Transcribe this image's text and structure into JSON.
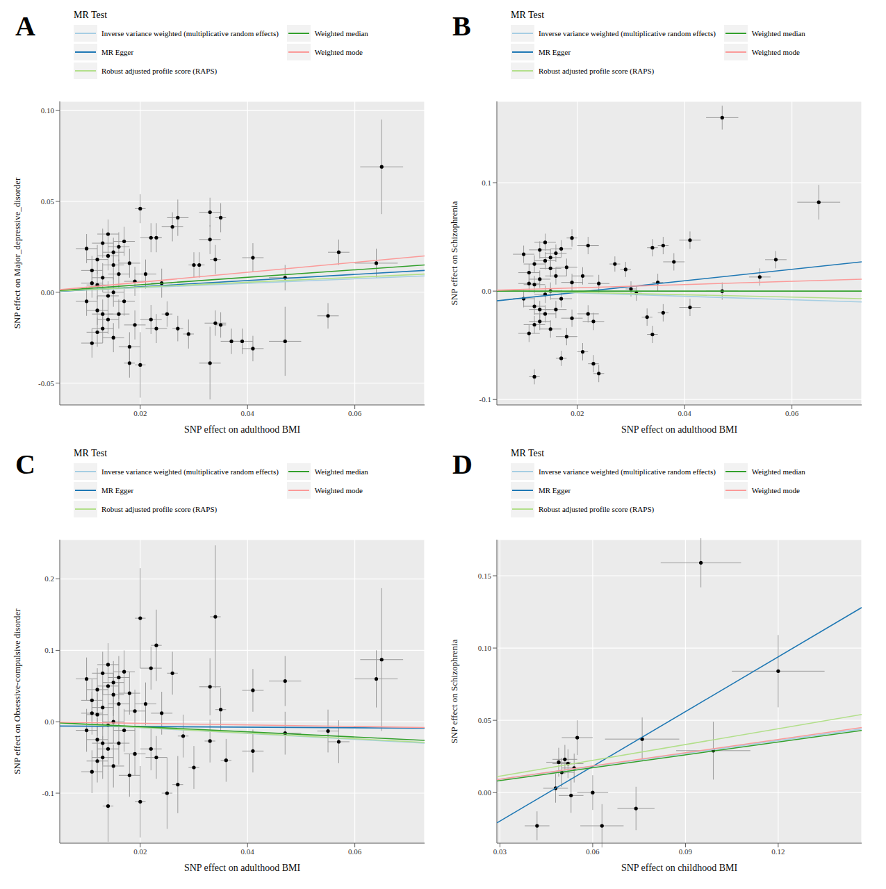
{
  "chart_data": [
    {
      "type": "scatter",
      "panel_label": "A",
      "legend_title": "MR Test",
      "x_label": "SNP effect on adulthood BMI",
      "y_label": "SNP effect on Major_depressive_disorder",
      "xlim": [
        0.005,
        0.073
      ],
      "ylim": [
        -0.062,
        0.105
      ],
      "xticks": [
        0.02,
        0.04,
        0.06
      ],
      "yticks": [
        -0.05,
        {
          "value": 0,
          "label": "0.00"
        },
        0.05,
        {
          "value": 0.1,
          "label": "0.10"
        }
      ],
      "grid": true,
      "color": "#000000",
      "marker": "circle",
      "x": [
        0.01,
        0.011,
        0.011,
        0.012,
        0.012,
        0.012,
        0.013,
        0.013,
        0.013,
        0.014,
        0.014,
        0.014,
        0.015,
        0.015,
        0.015,
        0.016,
        0.016,
        0.017,
        0.017,
        0.018,
        0.018,
        0.019,
        0.019,
        0.01,
        0.011,
        0.012,
        0.013,
        0.014,
        0.015,
        0.016,
        0.021,
        0.022,
        0.022,
        0.024,
        0.023,
        0.065,
        0.057,
        0.064,
        0.055,
        0.047,
        0.047,
        0.041,
        0.041,
        0.039,
        0.037,
        0.035,
        0.033,
        0.033,
        0.033,
        0.034,
        0.034,
        0.035,
        0.027,
        0.026,
        0.02,
        0.02,
        0.018,
        0.029,
        0.027,
        0.023,
        0.03,
        0.031,
        0.025
      ],
      "values": [
        0.024,
        -0.028,
        0.012,
        0.018,
        -0.01,
        0.004,
        -0.02,
        0.027,
        0.008,
        -0.015,
        0.032,
        -0.002,
        0.015,
        -0.025,
        0.022,
        0.01,
        -0.012,
        0.028,
        -0.005,
        0.016,
        -0.03,
        0.006,
        -0.018,
        -0.005,
        0.005,
        -0.022,
        -0.012,
        0.02,
        0.0,
        0.025,
        0.01,
        -0.015,
        0.03,
        0.005,
        -0.02,
        0.069,
        0.022,
        0.016,
        -0.013,
        0.008,
        -0.027,
        0.019,
        -0.031,
        -0.027,
        -0.027,
        0.041,
        0.044,
        0.029,
        -0.039,
        0.018,
        -0.017,
        -0.018,
        0.041,
        0.036,
        0.046,
        -0.04,
        -0.039,
        -0.023,
        -0.02,
        0.03,
        0.015,
        0.015,
        -0.012
      ],
      "x_err": [
        0.002,
        0.002,
        0.002,
        0.002,
        0.002,
        0.002,
        0.002,
        0.002,
        0.002,
        0.002,
        0.002,
        0.002,
        0.002,
        0.002,
        0.002,
        0.002,
        0.002,
        0.002,
        0.002,
        0.002,
        0.002,
        0.002,
        0.002,
        0.002,
        0.002,
        0.002,
        0.002,
        0.002,
        0.002,
        0.002,
        0.002,
        0.002,
        0.002,
        0.002,
        0.002,
        0.004,
        0.002,
        0.004,
        0.002,
        0.003,
        0.003,
        0.002,
        0.002,
        0.002,
        0.002,
        0.001,
        0.002,
        0.002,
        0.002,
        0.001,
        0.002,
        0.001,
        0.002,
        0.002,
        0.001,
        0.001,
        0.001,
        0.001,
        0.001,
        0.001,
        0.001,
        0.001,
        0.001
      ],
      "y_err": [
        0.008,
        0.008,
        0.008,
        0.008,
        0.008,
        0.008,
        0.008,
        0.008,
        0.008,
        0.008,
        0.008,
        0.008,
        0.008,
        0.008,
        0.008,
        0.008,
        0.008,
        0.008,
        0.008,
        0.008,
        0.008,
        0.008,
        0.008,
        0.008,
        0.008,
        0.008,
        0.008,
        0.008,
        0.008,
        0.008,
        0.008,
        0.008,
        0.008,
        0.008,
        0.008,
        0.026,
        0.007,
        0.008,
        0.007,
        0.007,
        0.019,
        0.008,
        0.007,
        0.007,
        0.007,
        0.008,
        0.008,
        0.008,
        0.02,
        0.008,
        0.007,
        0.007,
        0.01,
        0.008,
        0.008,
        0.018,
        0.008,
        0.008,
        0.007,
        0.008,
        0.007,
        0.007,
        0.007
      ],
      "series": [
        {
          "name": "Inverse variance weighted (multiplicative random effects)",
          "color": "#a6cee3",
          "type": "line",
          "x": [
            0.005,
            0.073
          ],
          "values": [
            0.0006,
            0.009
          ]
        },
        {
          "name": "MR Egger",
          "color": "#1f78b4",
          "type": "line",
          "x": [
            0.005,
            0.073
          ],
          "values": [
            0.0005,
            0.012
          ]
        },
        {
          "name": "Robust adjusted profile score (RAPS)",
          "color": "#b2df8a",
          "type": "line",
          "x": [
            0.005,
            0.073
          ],
          "values": [
            0.0007,
            0.01
          ]
        },
        {
          "name": "Weighted median",
          "color": "#33a02c",
          "type": "line",
          "x": [
            0.005,
            0.073
          ],
          "values": [
            0.001,
            0.015
          ]
        },
        {
          "name": "Weighted mode",
          "color": "#fb9a99",
          "type": "line",
          "x": [
            0.005,
            0.073
          ],
          "values": [
            0.0014,
            0.02
          ]
        }
      ]
    },
    {
      "type": "scatter",
      "panel_label": "B",
      "legend_title": "MR Test",
      "x_label": "SNP effect on adulthood BMI",
      "y_label": "SNP effect on Schizophrenia",
      "xlim": [
        0.005,
        0.073
      ],
      "ylim": [
        -0.105,
        0.175
      ],
      "xticks": [
        0.02,
        0.04,
        0.06
      ],
      "yticks": [
        -0.1,
        {
          "value": 0,
          "label": "0.0"
        },
        0.1
      ],
      "grid": true,
      "color": "#000000",
      "marker": "circle",
      "x": [
        0.01,
        0.011,
        0.011,
        0.012,
        0.012,
        0.012,
        0.013,
        0.013,
        0.013,
        0.014,
        0.014,
        0.014,
        0.015,
        0.015,
        0.015,
        0.016,
        0.016,
        0.017,
        0.017,
        0.018,
        0.018,
        0.019,
        0.019,
        0.01,
        0.011,
        0.012,
        0.013,
        0.014,
        0.015,
        0.016,
        0.021,
        0.022,
        0.022,
        0.024,
        0.023,
        0.047,
        0.065,
        0.057,
        0.054,
        0.047,
        0.041,
        0.041,
        0.038,
        0.036,
        0.034,
        0.035,
        0.033,
        0.034,
        0.036,
        0.024,
        0.023,
        0.012,
        0.019,
        0.017,
        0.021,
        0.027,
        0.03,
        0.031,
        0.029
      ],
      "values": [
        0.034,
        -0.039,
        0.017,
        0.025,
        -0.014,
        0.006,
        -0.028,
        0.038,
        0.011,
        -0.021,
        0.045,
        -0.003,
        0.021,
        -0.035,
        0.031,
        0.014,
        -0.017,
        0.039,
        -0.007,
        0.022,
        -0.042,
        0.008,
        -0.025,
        -0.007,
        0.007,
        -0.031,
        -0.017,
        0.028,
        0.0,
        0.035,
        0.014,
        -0.021,
        0.042,
        0.007,
        -0.028,
        0.16,
        0.082,
        0.029,
        0.013,
        0.0,
        0.047,
        -0.015,
        0.027,
        0.042,
        0.04,
        0.008,
        -0.024,
        -0.04,
        -0.02,
        -0.076,
        -0.067,
        -0.079,
        0.049,
        -0.062,
        -0.056,
        0.025,
        0.002,
        -0.002,
        0.02
      ],
      "x_err": [
        0.002,
        0.002,
        0.002,
        0.002,
        0.002,
        0.002,
        0.002,
        0.002,
        0.002,
        0.002,
        0.002,
        0.002,
        0.002,
        0.002,
        0.002,
        0.002,
        0.002,
        0.002,
        0.002,
        0.002,
        0.002,
        0.002,
        0.002,
        0.002,
        0.002,
        0.002,
        0.002,
        0.002,
        0.002,
        0.002,
        0.002,
        0.002,
        0.002,
        0.002,
        0.002,
        0.003,
        0.004,
        0.002,
        0.002,
        0.003,
        0.002,
        0.002,
        0.002,
        0.001,
        0.001,
        0.001,
        0.001,
        0.001,
        0.001,
        0.001,
        0.001,
        0.001,
        0.001,
        0.001,
        0.001,
        0.001,
        0.001,
        0.001,
        0.001
      ],
      "y_err": [
        0.008,
        0.008,
        0.008,
        0.008,
        0.008,
        0.008,
        0.008,
        0.008,
        0.008,
        0.008,
        0.008,
        0.008,
        0.008,
        0.008,
        0.008,
        0.008,
        0.008,
        0.008,
        0.008,
        0.008,
        0.008,
        0.008,
        0.008,
        0.008,
        0.008,
        0.008,
        0.008,
        0.008,
        0.008,
        0.008,
        0.008,
        0.008,
        0.008,
        0.008,
        0.008,
        0.011,
        0.016,
        0.008,
        0.008,
        0.008,
        0.008,
        0.008,
        0.008,
        0.008,
        0.008,
        0.008,
        0.008,
        0.008,
        0.008,
        0.008,
        0.008,
        0.007,
        0.008,
        0.007,
        0.008,
        0.007,
        0.007,
        0.007,
        0.007
      ],
      "series": [
        {
          "name": "Inverse variance weighted (multiplicative random effects)",
          "color": "#a6cee3",
          "type": "line",
          "x": [
            0.005,
            0.073
          ],
          "values": [
            0.0007,
            -0.01
          ]
        },
        {
          "name": "MR Egger",
          "color": "#1f78b4",
          "type": "line",
          "x": [
            0.005,
            0.073
          ],
          "values": [
            -0.009,
            0.027
          ]
        },
        {
          "name": "Robust adjusted profile score (RAPS)",
          "color": "#b2df8a",
          "type": "line",
          "x": [
            0.005,
            0.073
          ],
          "values": [
            0.0005,
            -0.007
          ]
        },
        {
          "name": "Weighted median",
          "color": "#33a02c",
          "type": "line",
          "x": [
            0.005,
            0.073
          ],
          "values": [
            0,
            0
          ]
        },
        {
          "name": "Weighted mode",
          "color": "#fb9a99",
          "type": "line",
          "x": [
            0.005,
            0.073
          ],
          "values": [
            0.0008,
            0.011
          ]
        }
      ]
    },
    {
      "type": "scatter",
      "panel_label": "C",
      "legend_title": "MR Test",
      "x_label": "SNP effect on adulthood BMI",
      "y_label": "SNP effect on Obsessive-compulsive disorder",
      "xlim": [
        0.005,
        0.073
      ],
      "ylim": [
        -0.17,
        0.255
      ],
      "xticks": [
        0.02,
        0.04,
        0.06
      ],
      "yticks": [
        -0.1,
        {
          "value": 0,
          "label": "0.0"
        },
        0.1,
        0.2
      ],
      "grid": true,
      "color": "#000000",
      "marker": "circle",
      "x": [
        0.01,
        0.011,
        0.011,
        0.012,
        0.012,
        0.012,
        0.013,
        0.013,
        0.013,
        0.014,
        0.014,
        0.014,
        0.015,
        0.015,
        0.015,
        0.016,
        0.016,
        0.017,
        0.017,
        0.018,
        0.018,
        0.019,
        0.019,
        0.01,
        0.011,
        0.012,
        0.013,
        0.014,
        0.015,
        0.016,
        0.021,
        0.022,
        0.022,
        0.024,
        0.023,
        0.065,
        0.064,
        0.057,
        0.055,
        0.047,
        0.047,
        0.041,
        0.041,
        0.034,
        0.033,
        0.033,
        0.035,
        0.036,
        0.02,
        0.02,
        0.014,
        0.023,
        0.025,
        0.027,
        0.03,
        0.028,
        0.026
      ],
      "values": [
        0.06,
        -0.07,
        0.03,
        0.045,
        -0.025,
        0.01,
        -0.05,
        0.068,
        0.02,
        -0.038,
        0.08,
        -0.005,
        0.038,
        -0.062,
        0.055,
        0.025,
        -0.03,
        0.07,
        -0.012,
        0.04,
        -0.075,
        0.015,
        -0.045,
        -0.012,
        0.012,
        -0.055,
        -0.03,
        0.05,
        0.0,
        0.062,
        0.025,
        -0.038,
        0.075,
        0.012,
        -0.05,
        0.087,
        0.06,
        -0.028,
        -0.013,
        0.057,
        -0.016,
        0.044,
        -0.041,
        0.147,
        0.049,
        -0.027,
        0.017,
        -0.054,
        0.145,
        -0.112,
        -0.118,
        0.107,
        -0.1,
        -0.088,
        -0.064,
        -0.02,
        0.068
      ],
      "x_err": [
        0.002,
        0.002,
        0.002,
        0.002,
        0.002,
        0.002,
        0.002,
        0.002,
        0.002,
        0.002,
        0.002,
        0.002,
        0.002,
        0.002,
        0.002,
        0.002,
        0.002,
        0.002,
        0.002,
        0.002,
        0.002,
        0.002,
        0.002,
        0.002,
        0.002,
        0.002,
        0.002,
        0.002,
        0.002,
        0.002,
        0.002,
        0.002,
        0.002,
        0.002,
        0.002,
        0.004,
        0.004,
        0.002,
        0.002,
        0.003,
        0.003,
        0.002,
        0.002,
        0.001,
        0.002,
        0.001,
        0.001,
        0.001,
        0.001,
        0.001,
        0.001,
        0.001,
        0.001,
        0.001,
        0.001,
        0.001,
        0.001
      ],
      "y_err": [
        0.03,
        0.03,
        0.03,
        0.03,
        0.03,
        0.03,
        0.03,
        0.03,
        0.03,
        0.03,
        0.03,
        0.03,
        0.03,
        0.03,
        0.03,
        0.03,
        0.03,
        0.03,
        0.03,
        0.03,
        0.03,
        0.03,
        0.03,
        0.03,
        0.03,
        0.03,
        0.03,
        0.03,
        0.03,
        0.03,
        0.03,
        0.03,
        0.03,
        0.03,
        0.03,
        0.1,
        0.04,
        0.03,
        0.03,
        0.035,
        0.03,
        0.03,
        0.03,
        0.1,
        0.04,
        0.03,
        0.03,
        0.03,
        0.07,
        0.05,
        0.05,
        0.05,
        0.05,
        0.04,
        0.03,
        0.03,
        0.03
      ],
      "series": [
        {
          "name": "Inverse variance weighted (multiplicative random effects)",
          "color": "#a6cee3",
          "type": "line",
          "x": [
            0.005,
            0.073
          ],
          "values": [
            -0.002,
            -0.03
          ]
        },
        {
          "name": "MR Egger",
          "color": "#1f78b4",
          "type": "line",
          "x": [
            0.005,
            0.073
          ],
          "values": [
            -0.006,
            -0.009
          ]
        },
        {
          "name": "Robust adjusted profile score (RAPS)",
          "color": "#b2df8a",
          "type": "line",
          "x": [
            0.005,
            0.073
          ],
          "values": [
            -0.002,
            -0.029
          ]
        },
        {
          "name": "Weighted median",
          "color": "#33a02c",
          "type": "line",
          "x": [
            0.005,
            0.073
          ],
          "values": [
            -0.0015,
            -0.026
          ]
        },
        {
          "name": "Weighted mode",
          "color": "#fb9a99",
          "type": "line",
          "x": [
            0.005,
            0.073
          ],
          "values": [
            -0.0005,
            -0.008
          ]
        }
      ]
    },
    {
      "type": "scatter",
      "panel_label": "D",
      "legend_title": "MR Test",
      "x_label": "SNP effect on childhood BMI",
      "y_label": "SNP effect on Schizophrenia",
      "xlim": [
        0.029,
        0.147
      ],
      "ylim": [
        -0.035,
        0.175
      ],
      "xticks": [
        0.03,
        0.06,
        0.09,
        0.12
      ],
      "yticks": [
        {
          "value": 0,
          "label": "0.00"
        },
        0.05,
        {
          "value": 0.1,
          "label": "0.10"
        },
        0.15
      ],
      "grid": true,
      "color": "#000000",
      "marker": "circle",
      "x": [
        0.095,
        0.12,
        0.099,
        0.076,
        0.074,
        0.063,
        0.06,
        0.055,
        0.053,
        0.051,
        0.049,
        0.05,
        0.048,
        0.054,
        0.052,
        0.042
      ],
      "values": [
        0.159,
        0.084,
        0.029,
        0.037,
        -0.011,
        -0.023,
        0.0,
        0.038,
        -0.002,
        0.023,
        0.021,
        0.014,
        0.003,
        0.017,
        0.02,
        -0.023
      ],
      "x_err": [
        0.013,
        0.015,
        0.012,
        0.012,
        0.006,
        0.007,
        0.005,
        0.005,
        0.004,
        0.004,
        0.004,
        0.004,
        0.004,
        0.004,
        0.005,
        0.004
      ],
      "y_err": [
        0.017,
        0.025,
        0.02,
        0.015,
        0.015,
        0.015,
        0.012,
        0.012,
        0.012,
        0.01,
        0.01,
        0.01,
        0.01,
        0.01,
        0.01,
        0.01
      ],
      "series": [
        {
          "name": "Inverse variance weighted (multiplicative random effects)",
          "color": "#a6cee3",
          "type": "line",
          "x": [
            0.029,
            0.147
          ],
          "values": [
            0.009,
            0.044
          ]
        },
        {
          "name": "MR Egger",
          "color": "#1f78b4",
          "type": "line",
          "x": [
            0.029,
            0.147
          ],
          "values": [
            -0.021,
            0.128
          ]
        },
        {
          "name": "Robust adjusted profile score (RAPS)",
          "color": "#b2df8a",
          "type": "line",
          "x": [
            0.029,
            0.147
          ],
          "values": [
            0.011,
            0.054
          ]
        },
        {
          "name": "Weighted median",
          "color": "#33a02c",
          "type": "line",
          "x": [
            0.029,
            0.147
          ],
          "values": [
            0.008,
            0.043
          ]
        },
        {
          "name": "Weighted mode",
          "color": "#fb9a99",
          "type": "line",
          "x": [
            0.029,
            0.147
          ],
          "values": [
            0.009,
            0.045
          ]
        }
      ]
    }
  ]
}
